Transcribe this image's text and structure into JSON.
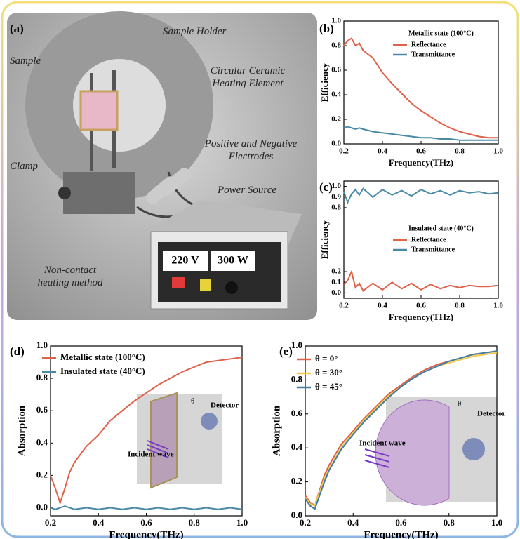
{
  "panel_labels": [
    "(a)",
    "(b)",
    "(c)",
    "(d)",
    "(e)"
  ],
  "illustration": {
    "labels": [
      "Sample",
      "Sample Holder",
      "Circular Ceramic Heating Element",
      "Clamp",
      "Positive and Negative Electrodes",
      "Power Source",
      "Non-contact heating method"
    ],
    "display": [
      "220 V",
      "300 W"
    ]
  },
  "chart_data": [
    {
      "type": "line",
      "xlabel": "Frequency(THz)",
      "ylabel": "Efficiency",
      "legend_title": "Metallic state (100°C)",
      "x": [
        0.2,
        0.22,
        0.24,
        0.26,
        0.28,
        0.3,
        0.35,
        0.4,
        0.45,
        0.5,
        0.55,
        0.6,
        0.65,
        0.7,
        0.75,
        0.8,
        0.85,
        0.9,
        0.95,
        1.0
      ],
      "series": [
        {
          "name": "Reflectance",
          "color": "#e0604a",
          "values": [
            0.8,
            0.84,
            0.86,
            0.8,
            0.82,
            0.76,
            0.7,
            0.58,
            0.49,
            0.41,
            0.33,
            0.27,
            0.22,
            0.17,
            0.13,
            0.1,
            0.08,
            0.06,
            0.05,
            0.05
          ]
        },
        {
          "name": "Transmittance",
          "color": "#4a8aa8",
          "values": [
            0.13,
            0.14,
            0.13,
            0.12,
            0.13,
            0.12,
            0.1,
            0.09,
            0.08,
            0.07,
            0.06,
            0.05,
            0.05,
            0.04,
            0.04,
            0.03,
            0.03,
            0.03,
            0.03,
            0.03
          ]
        }
      ],
      "xlim": [
        0.2,
        1.0
      ],
      "ylim": [
        0,
        1.0
      ],
      "xticks": [
        0.2,
        0.4,
        0.6,
        0.8,
        {
          "value": 1.0,
          "label": "1.0"
        }
      ],
      "yticks": [
        {
          "value": 0,
          "label": "0.0"
        },
        0.2,
        0.4,
        0.6,
        0.8,
        {
          "value": 1.0,
          "label": "1.0"
        }
      ]
    },
    {
      "type": "line",
      "xlabel": "Frequency(THz)",
      "ylabel": "Efficiency",
      "legend_title": "Insulated state (40°C)",
      "x": [
        0.2,
        0.22,
        0.24,
        0.26,
        0.28,
        0.3,
        0.35,
        0.4,
        0.45,
        0.5,
        0.55,
        0.6,
        0.65,
        0.7,
        0.75,
        0.8,
        0.85,
        0.9,
        0.95,
        1.0
      ],
      "series": [
        {
          "name": "Reflectance",
          "color": "#e0604a",
          "values": [
            0.08,
            0.12,
            0.2,
            0.05,
            0.09,
            0.02,
            0.09,
            0.03,
            0.1,
            0.04,
            0.09,
            0.03,
            0.08,
            0.04,
            0.07,
            0.05,
            0.07,
            0.06,
            0.06,
            0.07
          ]
        },
        {
          "name": "Transmittance",
          "color": "#4a8aa8",
          "values": [
            0.95,
            0.85,
            0.93,
            0.97,
            0.92,
            0.98,
            0.9,
            0.97,
            0.92,
            0.96,
            0.91,
            0.97,
            0.93,
            0.96,
            0.92,
            0.96,
            0.94,
            0.95,
            0.93,
            0.94
          ]
        }
      ],
      "xlim": [
        0.2,
        1.0
      ],
      "ylim": [
        -0.05,
        1.05
      ],
      "xticks": [
        0.2,
        0.4,
        0.6,
        0.8,
        {
          "value": 1.0,
          "label": "1.0"
        }
      ],
      "yticks": [
        {
          "value": 0,
          "label": "0.0"
        },
        0.1,
        0.2,
        0.8,
        0.9,
        {
          "value": 1.0,
          "label": "1.0"
        }
      ]
    },
    {
      "type": "line",
      "xlabel": "Frequency(THz)",
      "ylabel": "Absorption",
      "annotations": [
        "θ",
        "Detector",
        "Incident wave"
      ],
      "x": [
        0.2,
        0.22,
        0.24,
        0.26,
        0.28,
        0.3,
        0.35,
        0.4,
        0.45,
        0.5,
        0.55,
        0.6,
        0.65,
        0.7,
        0.75,
        0.8,
        0.85,
        0.9,
        0.95,
        1.0
      ],
      "series": [
        {
          "name": "Metallic state (100°C)",
          "color": "#e0604a",
          "values": [
            0.2,
            0.12,
            0.03,
            0.12,
            0.22,
            0.28,
            0.38,
            0.45,
            0.54,
            0.6,
            0.66,
            0.71,
            0.76,
            0.8,
            0.84,
            0.87,
            0.9,
            0.91,
            0.92,
            0.93
          ]
        },
        {
          "name": "Insulated state (40°C)",
          "color": "#4a8aa8",
          "values": [
            0.0,
            -0.01,
            0.0,
            0.01,
            0.0,
            -0.01,
            0.0,
            -0.01,
            0.0,
            -0.01,
            0.0,
            -0.01,
            0.0,
            -0.01,
            0.0,
            -0.01,
            0.0,
            -0.01,
            0.0,
            -0.01
          ]
        }
      ],
      "xlim": [
        0.2,
        1.0
      ],
      "ylim": [
        -0.05,
        1.0
      ],
      "xticks": [
        0.2,
        0.4,
        0.6,
        0.8,
        {
          "value": 1.0,
          "label": "1.0"
        }
      ],
      "yticks": [
        {
          "value": 0,
          "label": "0.0"
        },
        0.2,
        0.4,
        0.6,
        0.8,
        {
          "value": 1.0,
          "label": "1.0"
        }
      ]
    },
    {
      "type": "line",
      "xlabel": "Frequency(THz)",
      "ylabel": "Absorption",
      "annotations": [
        "θ",
        "Detector",
        "Incident wave"
      ],
      "x": [
        0.2,
        0.22,
        0.24,
        0.26,
        0.28,
        0.3,
        0.35,
        0.4,
        0.45,
        0.5,
        0.55,
        0.6,
        0.65,
        0.7,
        0.75,
        0.8,
        0.85,
        0.9,
        0.95,
        1.0
      ],
      "series": [
        {
          "name": "θ = 0°",
          "color": "#e0604a",
          "values": [
            0.12,
            0.08,
            0.06,
            0.15,
            0.24,
            0.3,
            0.42,
            0.5,
            0.58,
            0.65,
            0.72,
            0.77,
            0.82,
            0.86,
            0.89,
            0.91,
            0.93,
            0.95,
            0.96,
            0.97
          ]
        },
        {
          "name": "θ = 30°",
          "color": "#f2c84b",
          "values": [
            0.11,
            0.07,
            0.06,
            0.14,
            0.22,
            0.28,
            0.4,
            0.49,
            0.57,
            0.64,
            0.71,
            0.76,
            0.81,
            0.85,
            0.88,
            0.9,
            0.92,
            0.94,
            0.95,
            0.96
          ]
        },
        {
          "name": "θ = 45°",
          "color": "#3f7fa6",
          "values": [
            0.1,
            0.06,
            0.04,
            0.12,
            0.2,
            0.27,
            0.39,
            0.48,
            0.56,
            0.63,
            0.7,
            0.76,
            0.81,
            0.85,
            0.88,
            0.91,
            0.93,
            0.95,
            0.96,
            0.97
          ]
        }
      ],
      "xlim": [
        0.2,
        1.0
      ],
      "ylim": [
        0,
        1.0
      ],
      "xticks": [
        0.2,
        0.4,
        0.6,
        0.8,
        {
          "value": 1.0,
          "label": "1.0"
        }
      ],
      "yticks": [
        {
          "value": 0,
          "label": "0.0"
        },
        0.2,
        0.4,
        0.6,
        0.8,
        {
          "value": 1.0,
          "label": "1.0"
        }
      ]
    }
  ]
}
